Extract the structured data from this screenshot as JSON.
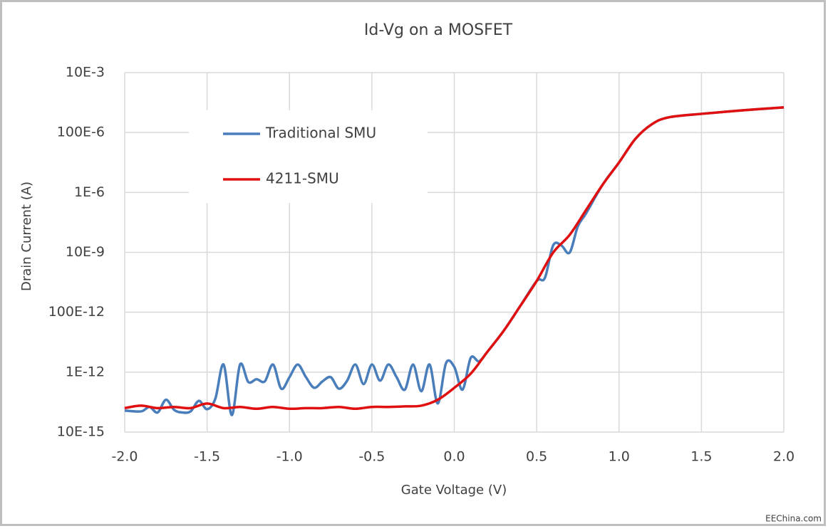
{
  "chart_data": {
    "type": "line",
    "title": "Id-Vg on a MOSFET",
    "x_label": "Gate Voltage (V)",
    "y_label": "Drain Current (A)",
    "annotation": "EEChina.com",
    "log_y": true,
    "grid": true,
    "legend": "upper left",
    "xlim": [
      -2,
      2
    ],
    "xticks": [
      {
        "value": -2,
        "label": "-2.0"
      },
      -1.5,
      {
        "value": -1,
        "label": "-1.0"
      },
      -0.5,
      {
        "value": 0,
        "label": "0.0"
      },
      0.5,
      {
        "value": 1,
        "label": "1.0"
      },
      1.5,
      {
        "value": 2,
        "label": "2.0"
      }
    ],
    "ylim": [
      1e-14,
      0.01
    ],
    "yticks": [
      {
        "value": 1e-14,
        "label": "10E-15"
      },
      {
        "value": 1e-12,
        "label": "1E-12"
      },
      {
        "value": 1e-10,
        "label": "100E-12"
      },
      {
        "value": 1e-08,
        "label": "10E-9"
      },
      {
        "value": 1e-06,
        "label": "1E-6"
      },
      {
        "value": 0.0001,
        "label": "100E-6"
      },
      {
        "value": 0.01,
        "label": "10E-3"
      }
    ],
    "series": [
      {
        "name": "Traditional SMU",
        "color": "#4a7ebb",
        "x": [
          -2,
          -1.9,
          -1.85,
          -1.8,
          -1.75,
          -1.7,
          -1.65,
          -1.6,
          -1.55,
          -1.5,
          -1.45,
          -1.4,
          -1.35,
          -1.3,
          -1.25,
          -1.2,
          -1.15,
          -1.1,
          -1.05,
          -1.0,
          -0.95,
          -0.9,
          -0.85,
          -0.8,
          -0.75,
          -0.7,
          -0.65,
          -0.6,
          -0.55,
          -0.5,
          -0.45,
          -0.4,
          -0.35,
          -0.3,
          -0.25,
          -0.2,
          -0.15,
          -0.1,
          -0.05,
          0,
          0.05,
          0.1,
          0.15,
          0.2,
          0.3,
          0.4,
          0.5,
          0.55,
          0.6,
          0.65,
          0.7,
          0.75,
          0.8,
          0.9,
          1.0,
          1.1,
          1.2,
          1.3,
          1.5,
          1.75,
          2.0
        ],
        "values": [
          5.2e-14,
          4.9e-14,
          6.9e-14,
          4.5e-14,
          1.2e-13,
          5.5e-14,
          4.5e-14,
          4.9e-14,
          1.1e-13,
          5.8e-14,
          1.3e-13,
          1.8e-12,
          3.7e-14,
          1.8e-12,
          4.7e-13,
          5.8e-13,
          4.9e-13,
          1.8e-12,
          2.8e-13,
          6.8e-13,
          1.8e-12,
          6.8e-13,
          3e-13,
          4.9e-13,
          6.8e-13,
          2.8e-13,
          5.2e-13,
          1.8e-12,
          4e-13,
          1.8e-12,
          5.2e-13,
          1.8e-12,
          6.8e-13,
          2.6e-13,
          1.8e-12,
          2.3e-13,
          1.8e-12,
          9e-14,
          2e-12,
          1.5e-12,
          2.6e-13,
          3e-12,
          2.3e-12,
          4.7e-12,
          2.4e-11,
          1.6e-10,
          1.1e-09,
          1.4e-09,
          1.7e-08,
          1.7e-08,
          9.8e-09,
          7.4e-08,
          2e-07,
          1.8e-06,
          1e-05,
          6.2e-05,
          0.00019,
          0.00032,
          0.00042,
          0.00055,
          0.00069
        ]
      },
      {
        "name": "4211-SMU",
        "color": "#e01010",
        "x": [
          -2,
          -1.9,
          -1.8,
          -1.7,
          -1.6,
          -1.5,
          -1.4,
          -1.3,
          -1.2,
          -1.1,
          -1.0,
          -0.9,
          -0.8,
          -0.7,
          -0.6,
          -0.5,
          -0.4,
          -0.3,
          -0.2,
          -0.1,
          0,
          0.1,
          0.2,
          0.3,
          0.4,
          0.5,
          0.6,
          0.7,
          0.8,
          0.9,
          1.0,
          1.1,
          1.2,
          1.3,
          1.5,
          1.75,
          2.0
        ],
        "values": [
          6.3e-14,
          7.6e-14,
          6.3e-14,
          6.9e-14,
          6.3e-14,
          9e-14,
          6.3e-14,
          6.9e-14,
          6e-14,
          6.9e-14,
          6e-14,
          6.3e-14,
          6.3e-14,
          6.9e-14,
          6e-14,
          6.9e-14,
          6.9e-14,
          7.2e-14,
          7.6e-14,
          1.2e-13,
          3e-13,
          8.9e-13,
          4.7e-12,
          2.4e-11,
          1.6e-10,
          1.1e-09,
          9.8e-09,
          3.8e-08,
          2.6e-07,
          1.8e-06,
          1e-05,
          6.2e-05,
          0.00019,
          0.00032,
          0.00042,
          0.00055,
          0.00069
        ]
      }
    ]
  }
}
